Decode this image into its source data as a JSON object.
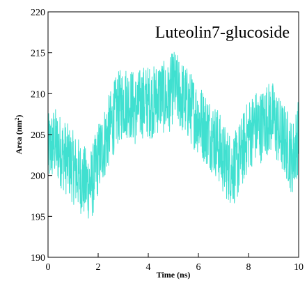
{
  "chart_data": {
    "type": "line",
    "title": "Luteolin7-glucoside",
    "xlabel": "Time (ns)",
    "ylabel_base": "Area (nm",
    "ylabel_sup": "2",
    "ylabel_close": ")",
    "xlim": [
      0,
      10
    ],
    "ylim": [
      190,
      220
    ],
    "xticks": [
      0,
      2,
      4,
      6,
      8,
      10
    ],
    "xtick_labels": [
      "0",
      "2",
      "4",
      "6",
      "8",
      "10"
    ],
    "yticks": [
      190,
      195,
      200,
      205,
      210,
      215,
      220
    ],
    "ytick_labels": [
      "190",
      "195",
      "200",
      "205",
      "210",
      "215",
      "220"
    ],
    "grid": false,
    "legend": "none",
    "series": [
      {
        "color": "#40E0D0",
        "x": [
          0.0,
          0.25,
          0.5,
          0.75,
          1.0,
          1.25,
          1.5,
          1.75,
          2.0,
          2.25,
          2.5,
          2.75,
          3.0,
          3.25,
          3.5,
          3.75,
          4.0,
          4.25,
          4.5,
          4.75,
          5.0,
          5.25,
          5.5,
          5.75,
          6.0,
          6.25,
          6.5,
          6.75,
          7.0,
          7.25,
          7.5,
          7.75,
          8.0,
          8.25,
          8.5,
          8.75,
          9.0,
          9.25,
          9.5,
          9.75,
          10.0
        ],
        "y": [
          203,
          204,
          203,
          202,
          201,
          200,
          199,
          199,
          202,
          204,
          206,
          208,
          209,
          209,
          208,
          209,
          209,
          209,
          210,
          209,
          211,
          210,
          209,
          208,
          207,
          206,
          205,
          204,
          202,
          201,
          201,
          203,
          205,
          206,
          206,
          207,
          207,
          205,
          204,
          202,
          205
        ]
      }
    ]
  }
}
